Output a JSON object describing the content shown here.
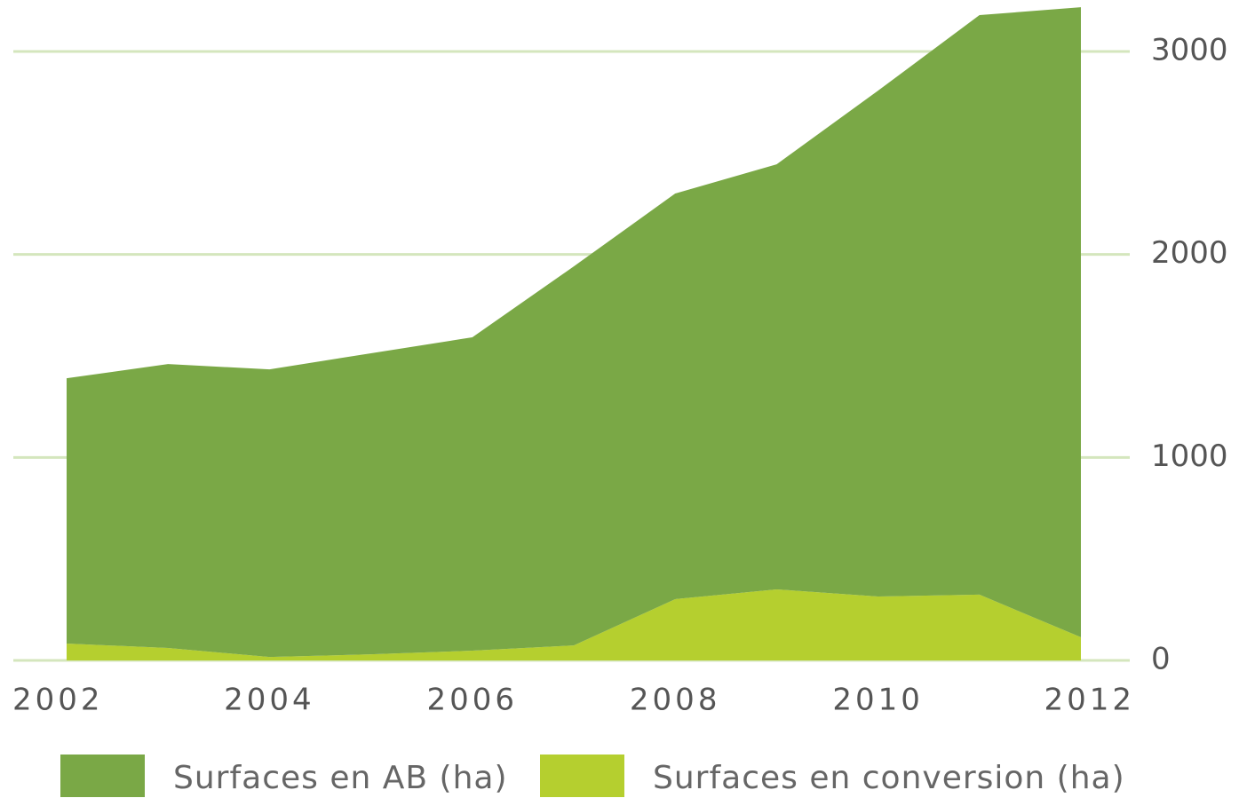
{
  "chart_data": {
    "type": "area",
    "stacked": true,
    "x": [
      2002,
      2003,
      2004,
      2005,
      2006,
      2007,
      2008,
      2009,
      2010,
      2011,
      2012
    ],
    "series": [
      {
        "name": "Surfaces en AB (ha)",
        "color": "#7aa846",
        "values": [
          1307,
          1399,
          1417,
          1483,
          1544,
          1867,
          1998,
          2094,
          2492,
          2855,
          3104
        ]
      },
      {
        "name": "Surfaces en conversion (ha)",
        "color": "#b5cf2f",
        "values": [
          83,
          61,
          17,
          30,
          48,
          74,
          302,
          350,
          315,
          324,
          114
        ]
      }
    ],
    "xlim": [
      2002,
      2012
    ],
    "xticks": [
      2002,
      2004,
      2006,
      2008,
      2010,
      2012
    ],
    "ylim": [
      0,
      3250
    ],
    "yticks": [
      0,
      1000,
      2000,
      3000
    ],
    "grid": true,
    "grid_color": "#d4e6bd",
    "y_axis_side": "right",
    "legend": "bottom"
  }
}
